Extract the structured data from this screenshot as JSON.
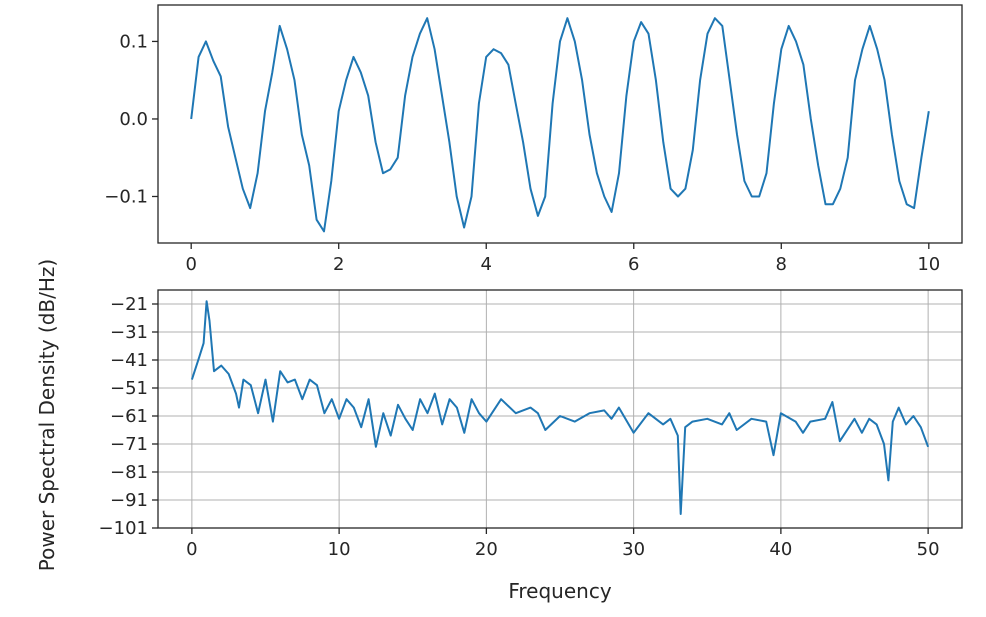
{
  "chart_data": [
    {
      "type": "line",
      "title": "",
      "xlabel": "",
      "ylabel": "",
      "xlim": [
        -0.45,
        10.45
      ],
      "ylim": [
        -0.16,
        0.147
      ],
      "xticks": [
        0,
        2,
        4,
        6,
        8,
        10
      ],
      "xtick_labels": [
        "0",
        "2",
        "4",
        "6",
        "8",
        "10"
      ],
      "yticks": [
        -0.1,
        0.0,
        0.1
      ],
      "ytick_labels": [
        "−0.1",
        "0.0",
        "0.1"
      ],
      "grid": false,
      "color": "#1f77b4",
      "series": [
        {
          "x": [
            0,
            0.1,
            0.2,
            0.3,
            0.4,
            0.5,
            0.6,
            0.7,
            0.8,
            0.9,
            1.0,
            1.1,
            1.2,
            1.3,
            1.4,
            1.5,
            1.6,
            1.7,
            1.8,
            1.9,
            2.0,
            2.1,
            2.2,
            2.3,
            2.4,
            2.5,
            2.6,
            2.7,
            2.8,
            2.9,
            3.0,
            3.1,
            3.2,
            3.3,
            3.4,
            3.5,
            3.6,
            3.7,
            3.8,
            3.9,
            4.0,
            4.1,
            4.2,
            4.3,
            4.4,
            4.5,
            4.6,
            4.7,
            4.8,
            4.9,
            5.0,
            5.1,
            5.2,
            5.3,
            5.4,
            5.5,
            5.6,
            5.7,
            5.8,
            5.9,
            6.0,
            6.1,
            6.2,
            6.3,
            6.4,
            6.5,
            6.6,
            6.7,
            6.8,
            6.9,
            7.0,
            7.1,
            7.2,
            7.3,
            7.4,
            7.5,
            7.6,
            7.7,
            7.8,
            7.9,
            8.0,
            8.1,
            8.2,
            8.3,
            8.4,
            8.5,
            8.6,
            8.7,
            8.8,
            8.9,
            9.0,
            9.1,
            9.2,
            9.3,
            9.4,
            9.5,
            9.6,
            9.7,
            9.8,
            9.9,
            10.0
          ],
          "y": [
            0.0,
            0.08,
            0.1,
            0.075,
            0.055,
            -0.01,
            -0.05,
            -0.09,
            -0.115,
            -0.07,
            0.01,
            0.06,
            0.12,
            0.09,
            0.05,
            -0.02,
            -0.06,
            -0.13,
            -0.145,
            -0.08,
            0.01,
            0.05,
            0.08,
            0.06,
            0.03,
            -0.03,
            -0.07,
            -0.065,
            -0.05,
            0.03,
            0.08,
            0.11,
            0.13,
            0.09,
            0.03,
            -0.03,
            -0.1,
            -0.14,
            -0.1,
            0.02,
            0.08,
            0.09,
            0.085,
            0.07,
            0.02,
            -0.03,
            -0.09,
            -0.125,
            -0.1,
            0.02,
            0.1,
            0.13,
            0.1,
            0.05,
            -0.02,
            -0.07,
            -0.1,
            -0.12,
            -0.07,
            0.03,
            0.1,
            0.125,
            0.11,
            0.05,
            -0.03,
            -0.09,
            -0.1,
            -0.09,
            -0.04,
            0.05,
            0.11,
            0.13,
            0.12,
            0.05,
            -0.02,
            -0.08,
            -0.1,
            -0.1,
            -0.07,
            0.02,
            0.09,
            0.12,
            0.1,
            0.07,
            0.0,
            -0.06,
            -0.11,
            -0.11,
            -0.09,
            -0.05,
            0.05,
            0.09,
            0.12,
            0.09,
            0.05,
            -0.02,
            -0.08,
            -0.11,
            -0.115,
            -0.05,
            0.01
          ]
        }
      ]
    },
    {
      "type": "line",
      "title": "",
      "xlabel": "Frequency",
      "ylabel": "Power Spectral Density (dB/Hz)",
      "xlim": [
        -2.3,
        52.3
      ],
      "ylim": [
        -101,
        -16
      ],
      "xticks": [
        0,
        10,
        20,
        30,
        40,
        50
      ],
      "xtick_labels": [
        "0",
        "10",
        "20",
        "30",
        "40",
        "50"
      ],
      "yticks": [
        -101,
        -91,
        -81,
        -71,
        -61,
        -51,
        -41,
        -31,
        -21
      ],
      "ytick_labels": [
        "−101",
        "−91",
        "−81",
        "−71",
        "−61",
        "−51",
        "−41",
        "−31",
        "−21"
      ],
      "grid": true,
      "color": "#1f77b4",
      "series": [
        {
          "x": [
            0,
            0.5,
            0.8,
            1.0,
            1.2,
            1.5,
            2.0,
            2.5,
            3.0,
            3.2,
            3.5,
            4.0,
            4.5,
            5.0,
            5.5,
            6.0,
            6.5,
            7.0,
            7.5,
            8.0,
            8.5,
            9.0,
            9.5,
            10.0,
            10.5,
            11.0,
            11.5,
            12.0,
            12.5,
            13.0,
            13.5,
            14.0,
            14.5,
            15.0,
            15.5,
            16.0,
            16.5,
            17.0,
            17.5,
            18.0,
            18.5,
            19.0,
            19.5,
            20.0,
            21.0,
            22.0,
            23.0,
            23.5,
            24.0,
            25.0,
            26.0,
            27.0,
            28.0,
            28.5,
            29.0,
            30.0,
            31.0,
            32.0,
            32.5,
            33.0,
            33.2,
            33.5,
            34.0,
            35.0,
            36.0,
            36.5,
            37.0,
            38.0,
            39.0,
            39.5,
            40.0,
            41.0,
            41.5,
            42.0,
            43.0,
            43.5,
            44.0,
            45.0,
            45.5,
            46.0,
            46.5,
            47.0,
            47.3,
            47.6,
            48.0,
            48.5,
            49.0,
            49.5,
            50.0
          ],
          "y": [
            -48,
            -40,
            -35,
            -20,
            -27,
            -45,
            -43,
            -46,
            -53,
            -58,
            -48,
            -50,
            -60,
            -48,
            -63,
            -45,
            -49,
            -48,
            -55,
            -48,
            -50,
            -60,
            -55,
            -62,
            -55,
            -58,
            -65,
            -55,
            -72,
            -60,
            -68,
            -57,
            -62,
            -66,
            -55,
            -60,
            -53,
            -64,
            -55,
            -58,
            -67,
            -55,
            -60,
            -63,
            -55,
            -60,
            -58,
            -60,
            -66,
            -61,
            -63,
            -60,
            -59,
            -62,
            -58,
            -67,
            -60,
            -64,
            -62,
            -68,
            -96,
            -65,
            -63,
            -62,
            -64,
            -60,
            -66,
            -62,
            -63,
            -75,
            -60,
            -63,
            -67,
            -63,
            -62,
            -56,
            -70,
            -62,
            -67,
            -62,
            -64,
            -71,
            -84,
            -63,
            -58,
            -64,
            -61,
            -65,
            -72
          ]
        }
      ]
    }
  ]
}
